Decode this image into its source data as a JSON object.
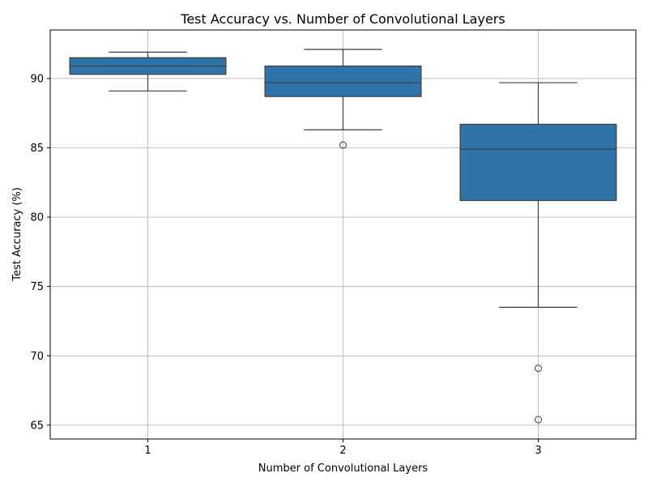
{
  "chart_data": {
    "type": "box",
    "title": "Test Accuracy vs. Number of Convolutional Layers",
    "xlabel": "Number of Convolutional Layers",
    "ylabel": "Test Accuracy (%)",
    "ylim": [
      64,
      93.5
    ],
    "yticks": [
      65,
      70,
      75,
      80,
      85,
      90
    ],
    "grid": true,
    "box_color": "#2e74a8",
    "line_color": "#3d3d3d",
    "categories": [
      "1",
      "2",
      "3"
    ],
    "boxes": [
      {
        "category": "1",
        "whisker_low": 89.1,
        "q1": 90.3,
        "median": 90.9,
        "q3": 91.5,
        "whisker_high": 91.9,
        "outliers": []
      },
      {
        "category": "2",
        "whisker_low": 86.3,
        "q1": 88.7,
        "median": 89.7,
        "q3": 90.9,
        "whisker_high": 92.1,
        "outliers": [
          85.2
        ]
      },
      {
        "category": "3",
        "whisker_low": 73.5,
        "q1": 81.2,
        "median": 84.9,
        "q3": 86.7,
        "whisker_high": 89.7,
        "outliers": [
          69.1,
          65.4
        ]
      }
    ]
  }
}
